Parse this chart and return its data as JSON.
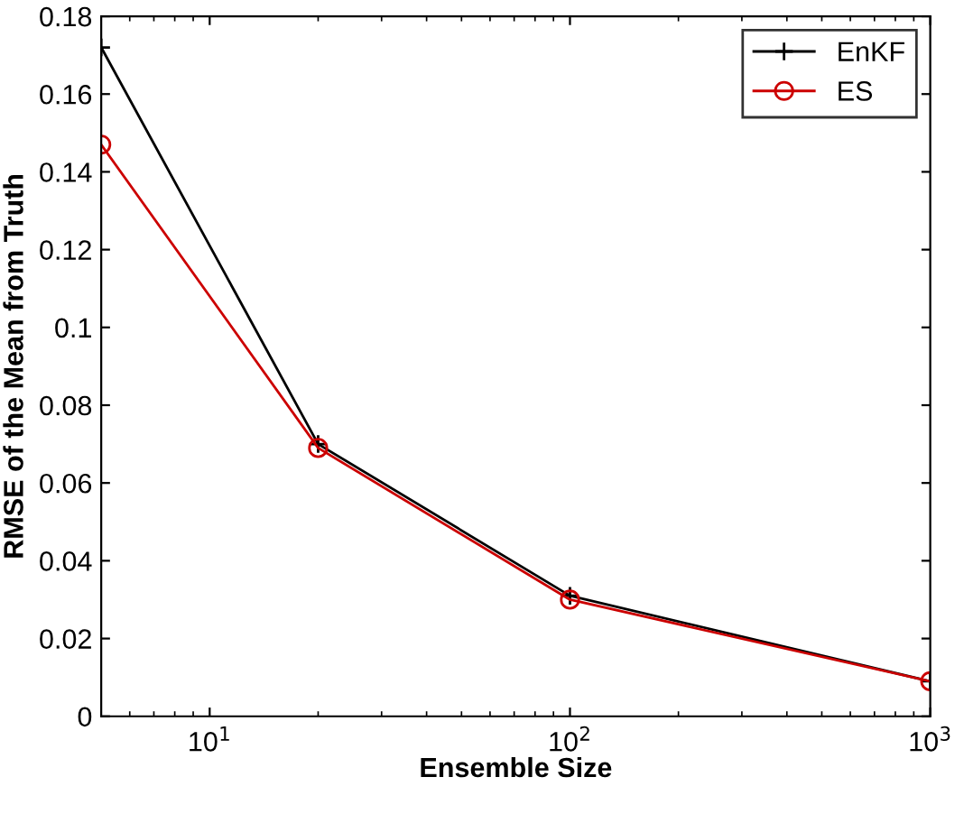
{
  "chart_data": {
    "type": "line",
    "xlabel": "Ensemble Size",
    "ylabel": "RMSE of the Mean from Truth",
    "log": "x",
    "x": [
      5,
      20,
      100,
      1000
    ],
    "series": [
      {
        "name": "EnKF",
        "color": "#000000",
        "marker": "cross",
        "values": [
          0.172,
          0.07,
          0.031,
          0.009
        ]
      },
      {
        "name": "ES",
        "color": "#cc0000",
        "marker": "circle",
        "values": [
          0.147,
          0.069,
          0.03,
          0.009
        ]
      }
    ],
    "xlim": [
      5,
      1000
    ],
    "xticks": [
      {
        "value": 10,
        "label": "10$^{1}$"
      },
      {
        "value": 100,
        "label": "10$^{2}$"
      },
      {
        "value": 1000,
        "label": "10$^{3}$"
      }
    ],
    "ylim": [
      0,
      0.18
    ],
    "yticks": [
      0,
      0.02,
      0.04,
      0.06,
      0.08,
      {
        "value": 0.1,
        "label": "0.1"
      },
      0.12,
      0.14,
      0.16,
      0.18
    ],
    "grid": false,
    "legend": "top right",
    "line_style": "solid"
  }
}
